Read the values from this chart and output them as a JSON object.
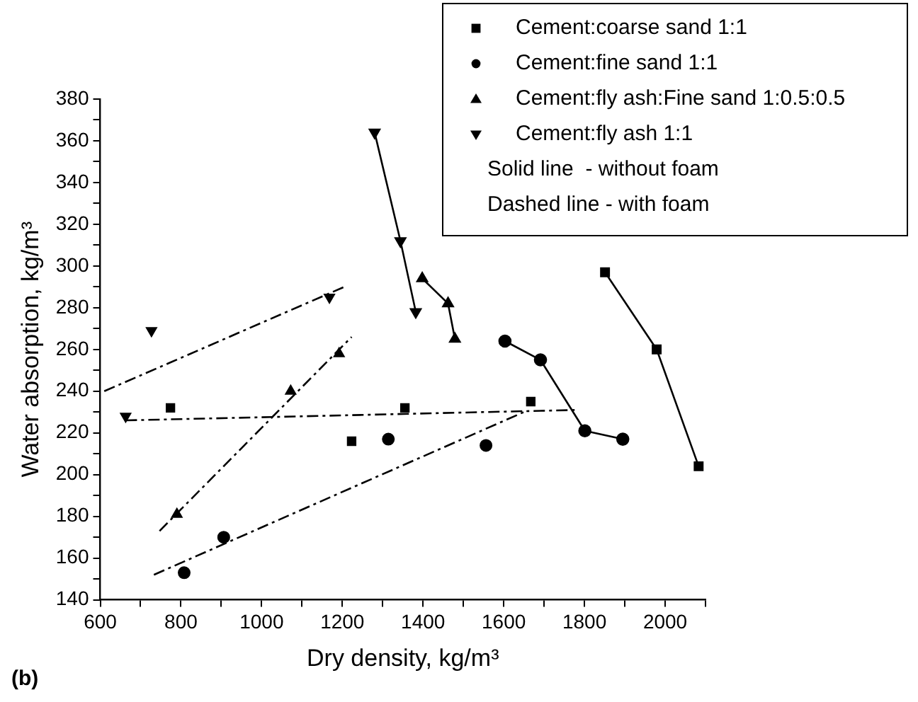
{
  "chart_data": {
    "type": "scatter",
    "xlabel": "Dry density, kg/m³",
    "ylabel": "Water absorption, kg/m³",
    "xlim": [
      600,
      2100
    ],
    "ylim": [
      140,
      380
    ],
    "xticks": [
      600,
      {
        "value": 700,
        "label": null
      },
      800,
      {
        "value": 900,
        "label": null
      },
      1000,
      {
        "value": 1100,
        "label": null
      },
      1200,
      {
        "value": 1300,
        "label": null
      },
      1400,
      {
        "value": 1500,
        "label": null
      },
      1600,
      {
        "value": 1700,
        "label": null
      },
      1800,
      {
        "value": 1900,
        "label": null
      },
      2000,
      {
        "value": 2100,
        "label": null
      }
    ],
    "yticks": [
      140,
      {
        "value": 150,
        "label": null
      },
      160,
      {
        "value": 170,
        "label": null
      },
      180,
      {
        "value": 190,
        "label": null
      },
      200,
      {
        "value": 210,
        "label": null
      },
      220,
      {
        "value": 230,
        "label": null
      },
      240,
      {
        "value": 250,
        "label": null
      },
      260,
      {
        "value": 270,
        "label": null
      },
      280,
      {
        "value": 290,
        "label": null
      },
      300,
      {
        "value": 310,
        "label": null
      },
      320,
      {
        "value": 330,
        "label": null
      },
      340,
      {
        "value": 350,
        "label": null
      },
      360,
      {
        "value": 370,
        "label": null
      },
      380
    ],
    "grid": false,
    "legend": "top right",
    "annotations": [
      "Solid line  - without foam",
      "Dashed line - with foam",
      "(b)"
    ],
    "series": [
      {
        "name": "Cement:coarse sand 1:1",
        "type": "scatter",
        "marker": "square",
        "color": "#000000",
        "x": [
          774,
          1223,
          1355,
          1667
        ],
        "values": [
          232,
          216,
          232,
          235
        ]
      },
      {
        "name": "Cement:fine sand 1:1",
        "type": "scatter",
        "marker": "circle",
        "color": "#000000",
        "x": [
          808,
          906,
          1314,
          1556
        ],
        "values": [
          153,
          170,
          217,
          214
        ]
      },
      {
        "name": "Cement:fly ash:Fine sand 1:0.5:0.5",
        "type": "scatter",
        "marker": "triangle",
        "color": "#000000",
        "x": [
          790,
          1072,
          1192
        ],
        "values": [
          181,
          240,
          258
        ]
      },
      {
        "name": "Cement:fly ash 1:1",
        "type": "scatter",
        "marker": "triangle_down",
        "color": "#000000",
        "x": [
          663,
          727,
          1168
        ],
        "values": [
          228,
          269,
          285
        ]
      },
      {
        "type": "line",
        "marker": "square",
        "line_style": "solid",
        "color": "#000000",
        "x": [
          1851,
          1979,
          2083
        ],
        "values": [
          297,
          260,
          204
        ]
      },
      {
        "type": "line",
        "marker": "circle",
        "line_style": "solid",
        "color": "#000000",
        "x": [
          1603,
          1691,
          1801,
          1895
        ],
        "values": [
          264,
          255,
          221,
          217
        ]
      },
      {
        "type": "line",
        "marker": "triangle",
        "line_style": "solid",
        "color": "#000000",
        "x": [
          1398,
          1462,
          1479
        ],
        "values": [
          294,
          282,
          265
        ]
      },
      {
        "type": "line",
        "marker": "triangle_down",
        "line_style": "solid",
        "color": "#000000",
        "x": [
          1280,
          1344,
          1382
        ],
        "values": [
          364,
          312,
          278
        ]
      },
      {
        "type": "line",
        "marker": "none",
        "line_style": "dashed",
        "color": "#000000",
        "x": [
          663,
          1780
        ],
        "values": [
          226,
          231
        ]
      },
      {
        "type": "line",
        "marker": "none",
        "line_style": "dashed",
        "color": "#000000",
        "x": [
          733,
          1650
        ],
        "values": [
          152,
          230
        ]
      },
      {
        "type": "line",
        "marker": "none",
        "line_style": "dashed",
        "color": "#000000",
        "x": [
          747,
          1223
        ],
        "values": [
          173,
          266
        ]
      },
      {
        "type": "line",
        "marker": "none",
        "line_style": "dashed",
        "color": "#000000",
        "x": [
          610,
          1205
        ],
        "values": [
          240,
          290
        ]
      }
    ]
  }
}
